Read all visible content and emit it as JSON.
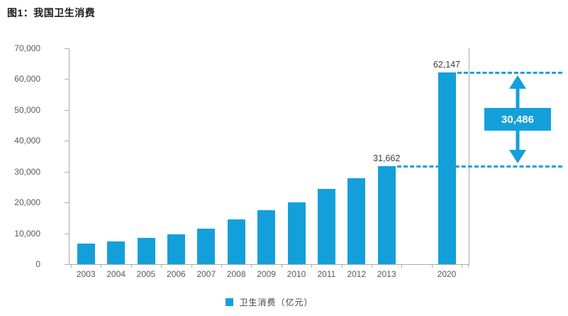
{
  "page": {
    "title": "图1：我国卫生消费"
  },
  "chart_data": {
    "type": "bar",
    "title": "图1：我国卫生消费",
    "categories": [
      "2003",
      "2004",
      "2005",
      "2006",
      "2007",
      "2008",
      "2009",
      "2010",
      "2011",
      "2012",
      "2013",
      "2020"
    ],
    "series": [
      {
        "name": "卫生消费（亿元）",
        "values": [
          6600,
          7400,
          8500,
          9600,
          11400,
          14500,
          17500,
          20000,
          24300,
          27800,
          31662,
          62147
        ]
      }
    ],
    "xlabel": "",
    "ylabel": "",
    "ylim": [
      0,
      70000
    ],
    "y_tick_labels_top_to_bottom": [
      "70,000",
      "60,000",
      "50,000",
      "40,000",
      "30,000",
      "20,000",
      "10,000",
      "0"
    ],
    "grid": false,
    "legend": {
      "position": "bottom",
      "label": "卫生消费（亿元）"
    },
    "data_labels": [
      {
        "category": "2013",
        "text": "31,662",
        "value": 31662
      },
      {
        "category": "2020",
        "text": "62,147",
        "value": 62147
      }
    ],
    "annotations": {
      "difference_box_text": "30,486",
      "dashed_reference_levels": [
        {
          "value": 31662,
          "from_category": "2013"
        },
        {
          "value": 62147,
          "from_category": "2020"
        }
      ]
    },
    "colors": {
      "bar": "#13a0da",
      "dashed_line": "#13a0da",
      "diff_box_background": "#13a0da",
      "diff_box_text": "#ffffff",
      "axis": "#ababab",
      "tick_text": "#595959",
      "value_label_text": "#404040",
      "title_text": "#1a1a1a"
    }
  }
}
